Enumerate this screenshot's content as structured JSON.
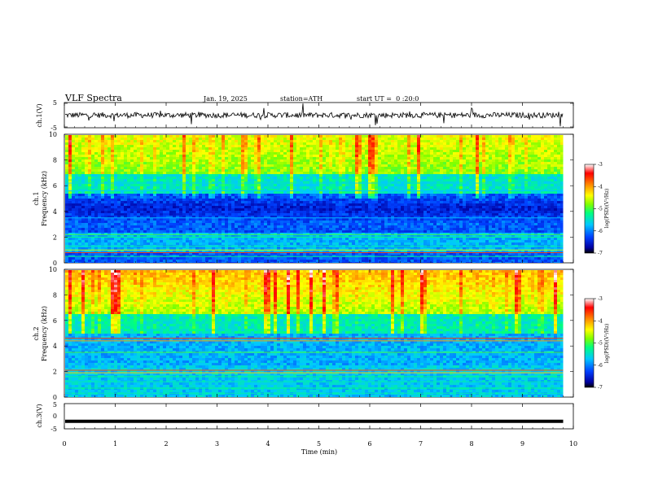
{
  "header": {
    "title": "VLF Spectra",
    "date": "Jan. 19, 2025",
    "station": "station=ATH",
    "start": "start UT =  0 :20:0"
  },
  "panels": {
    "ch1_wave": {
      "ylabel": "ch.1(V)",
      "ticks": [
        "5",
        "-5"
      ]
    },
    "ch1_spec": {
      "ylabel": "ch.1\nFrequency (kHz)",
      "ticks": [
        "10",
        "8",
        "6",
        "4",
        "2",
        "0"
      ]
    },
    "ch2_spec": {
      "ylabel": "ch.2\nFrequency (kHz)",
      "ticks": [
        "10",
        "8",
        "6",
        "4",
        "2",
        "0"
      ]
    },
    "ch3_wave": {
      "ylabel": "ch.3(V)",
      "ticks": [
        "5",
        "0",
        "-5"
      ]
    }
  },
  "colorbar": {
    "label": "log(PSD)(V²/Hz)",
    "ticks": [
      "-3",
      "-4",
      "-5",
      "-6",
      "-7"
    ],
    "colors": [
      "#000000",
      "#0000a0",
      "#0040ff",
      "#00c8ff",
      "#00ff80",
      "#80ff00",
      "#ffff00",
      "#ff8000",
      "#ff0000",
      "#ffffff"
    ]
  },
  "xaxis": {
    "label": "Time (min)",
    "ticks": [
      "0",
      "1",
      "2",
      "3",
      "4",
      "5",
      "6",
      "7",
      "8",
      "9",
      "10"
    ]
  },
  "chart_data": [
    {
      "type": "line",
      "title": "",
      "ylabel": "ch.1(V)",
      "xlabel": "",
      "xlim": [
        0,
        10
      ],
      "ylim": [
        -5,
        5
      ],
      "x": [
        0,
        1,
        2,
        3,
        4,
        5,
        6,
        7,
        8,
        9,
        9.8
      ],
      "series": [
        {
          "values": [
            0,
            0,
            0,
            0,
            0,
            0,
            0,
            0,
            0,
            0,
            0
          ]
        }
      ]
    },
    {
      "type": "heatmap",
      "title": "",
      "ylabel": "ch.1 Frequency (kHz)",
      "xlabel": "",
      "xlim": [
        0,
        10
      ],
      "ylim": [
        0,
        10
      ],
      "data_extent_x": [
        0,
        9.8
      ],
      "colorbar_range": [
        -7,
        -3
      ],
      "colorbar_label": "log(PSD)(V²/Hz)"
    },
    {
      "type": "heatmap",
      "title": "",
      "ylabel": "ch.2 Frequency (kHz)",
      "xlabel": "",
      "xlim": [
        0,
        10
      ],
      "ylim": [
        0,
        10
      ],
      "data_extent_x": [
        0,
        9.8
      ],
      "colorbar_range": [
        -7,
        -3
      ],
      "colorbar_label": "log(PSD)(V²/Hz)"
    },
    {
      "type": "line",
      "title": "",
      "ylabel": "ch.3(V)",
      "xlabel": "Time (min)",
      "xlim": [
        0,
        10
      ],
      "ylim": [
        -5,
        5
      ],
      "x": [
        0,
        9.8
      ],
      "series": [
        {
          "values": [
            -2,
            -2
          ]
        }
      ]
    }
  ]
}
